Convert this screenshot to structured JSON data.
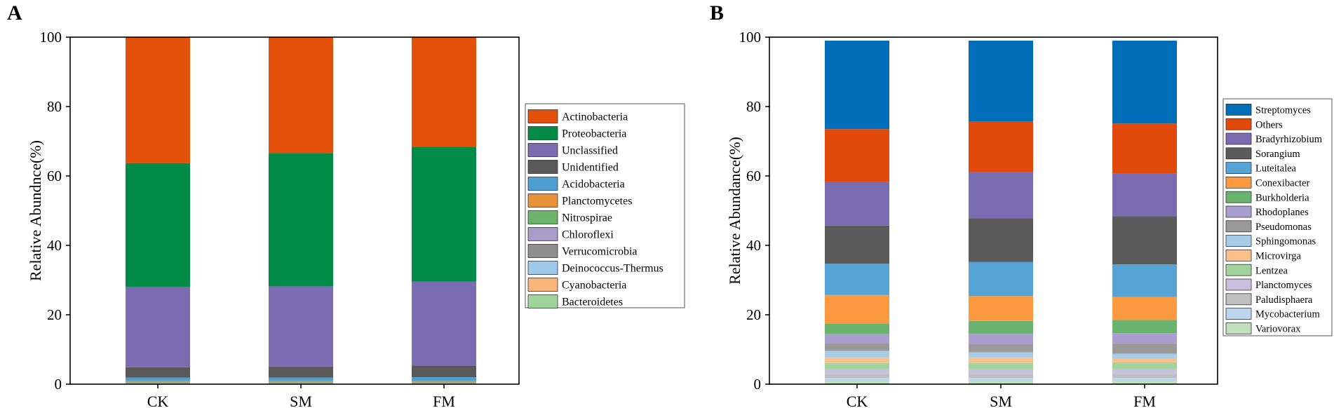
{
  "chart_data": [
    {
      "panel_label": "A",
      "type": "bar",
      "stacked": true,
      "categories": [
        "CK",
        "SM",
        "FM"
      ],
      "ylabel": "Relative Abundnce(%)",
      "xlabel": "",
      "ylim": [
        0,
        100
      ],
      "yticks": [
        0,
        20,
        40,
        60,
        80,
        100
      ],
      "legend_position": "right",
      "series": [
        {
          "name": "Bacteroidetes",
          "color": "#9fd49a",
          "values": [
            0.1,
            0.1,
            0.1
          ]
        },
        {
          "name": "Cyanobacteria",
          "color": "#fbb57a",
          "values": [
            0.1,
            0.1,
            0.1
          ]
        },
        {
          "name": "Deinococcus-Thermus",
          "color": "#9ec9e8",
          "values": [
            0.1,
            0.1,
            0.1
          ]
        },
        {
          "name": "Verrucomicrobia",
          "color": "#8f8f8f",
          "values": [
            0.1,
            0.1,
            0.1
          ]
        },
        {
          "name": "Chloroflexi",
          "color": "#a89cc9",
          "values": [
            0.1,
            0.1,
            0.1
          ]
        },
        {
          "name": "Nitrospirae",
          "color": "#6bb46a",
          "values": [
            0.2,
            0.2,
            0.2
          ]
        },
        {
          "name": "Planctomycetes",
          "color": "#e8933a",
          "values": [
            0.3,
            0.3,
            0.3
          ]
        },
        {
          "name": "Acidobacteria",
          "color": "#4d9fd3",
          "values": [
            0.9,
            0.9,
            1.0
          ]
        },
        {
          "name": "Unidentified",
          "color": "#595959",
          "values": [
            3.0,
            3.2,
            3.4
          ]
        },
        {
          "name": "Unclassified",
          "color": "#7a6cb0",
          "values": [
            23.1,
            23.1,
            24.2
          ]
        },
        {
          "name": "Proteobacteria",
          "color": "#008c46",
          "values": [
            35.7,
            38.4,
            38.8
          ]
        },
        {
          "name": "Actinobacteria",
          "color": "#e25009",
          "values": [
            36.3,
            33.3,
            31.6
          ]
        }
      ]
    },
    {
      "panel_label": "B",
      "type": "bar",
      "stacked": true,
      "categories": [
        "CK",
        "SM",
        "FM"
      ],
      "ylabel": "Relative Abundance(%)",
      "xlabel": "",
      "ylim": [
        0,
        100
      ],
      "yticks": [
        0,
        20,
        40,
        60,
        80,
        100
      ],
      "legend_position": "right",
      "series": [
        {
          "name": "Variovorax",
          "color": "#bfe0bb",
          "values": [
            0.8,
            0.8,
            0.8
          ]
        },
        {
          "name": "Mycobacterium",
          "color": "#bdd6ee",
          "values": [
            1.0,
            1.0,
            1.0
          ]
        },
        {
          "name": "Paludisphaera",
          "color": "#bfbfbf",
          "values": [
            1.2,
            1.2,
            1.2
          ]
        },
        {
          "name": "Planctomyces",
          "color": "#c7c0de",
          "values": [
            1.3,
            1.3,
            1.3
          ]
        },
        {
          "name": "Lentzea",
          "color": "#a3d39c",
          "values": [
            1.8,
            1.8,
            2.0
          ]
        },
        {
          "name": "Microvirga",
          "color": "#fbbf8a",
          "values": [
            1.5,
            1.5,
            1.0
          ]
        },
        {
          "name": "Sphingomonas",
          "color": "#a6cce8",
          "values": [
            2.0,
            1.6,
            1.5
          ]
        },
        {
          "name": "Pseudomonas",
          "color": "#999999",
          "values": [
            2.2,
            2.3,
            2.9
          ]
        },
        {
          "name": "Rhodoplanes",
          "color": "#a99fce",
          "values": [
            2.6,
            3.0,
            3.0
          ]
        },
        {
          "name": "Burkholderia",
          "color": "#69b36e",
          "values": [
            3.1,
            3.7,
            3.8
          ]
        },
        {
          "name": "Conexibacter",
          "color": "#fd9a40",
          "values": [
            8.2,
            7.2,
            6.6
          ]
        },
        {
          "name": "Luteitalea",
          "color": "#56a3d6",
          "values": [
            9.0,
            9.8,
            9.4
          ]
        },
        {
          "name": "Sorangium",
          "color": "#5b5b5b",
          "values": [
            11.0,
            12.6,
            13.9
          ]
        },
        {
          "name": "Bradyrhizobium",
          "color": "#7a6cb0",
          "values": [
            12.6,
            13.3,
            12.4
          ]
        },
        {
          "name": "Others",
          "color": "#e24a0b",
          "values": [
            15.2,
            14.5,
            14.3
          ]
        },
        {
          "name": "Streptomyces",
          "color": "#006eb8",
          "values": [
            25.5,
            23.4,
            23.9
          ]
        }
      ]
    }
  ]
}
